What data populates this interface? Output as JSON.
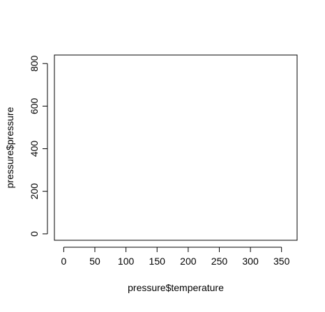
{
  "chart_data": {
    "type": "scatter",
    "title": "",
    "xlabel": "pressure$temperature",
    "ylabel": "pressure$pressure",
    "xlim": [
      -15,
      375
    ],
    "ylim": [
      -30,
      840
    ],
    "x_ticks": [
      0,
      50,
      100,
      150,
      200,
      250,
      300,
      350
    ],
    "y_ticks": [
      0,
      200,
      400,
      600,
      800
    ],
    "x": [],
    "y": [],
    "grid": false,
    "legend": "none",
    "colors": {
      "axis": "#000000",
      "background": "#ffffff"
    }
  }
}
